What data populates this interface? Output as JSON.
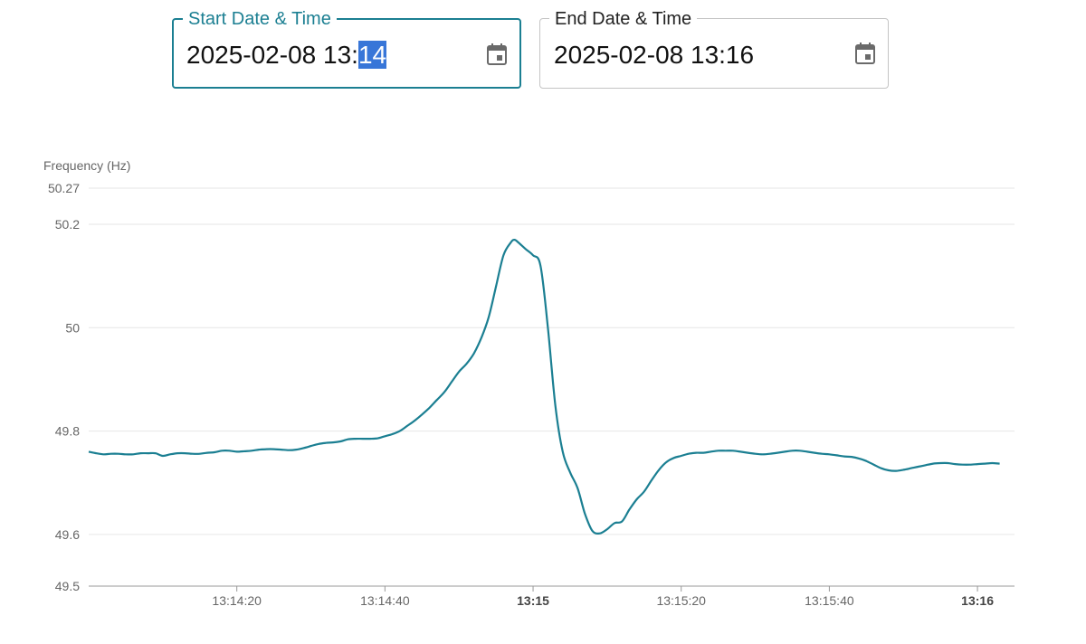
{
  "start_field": {
    "label": "Start Date & Time",
    "value_prefix": "2025-02-08 13:",
    "value_selected": "14",
    "icon": "calendar-icon"
  },
  "end_field": {
    "label": "End Date & Time",
    "value": "2025-02-08 13:16",
    "icon": "calendar-icon"
  },
  "colors": {
    "accent": "#1b7f92",
    "line": "#1b7f92",
    "selection": "#3876d8",
    "grid": "#e6e6e6"
  },
  "chart_data": {
    "type": "line",
    "ylabel": "Frequency (Hz)",
    "ylim": [
      49.5,
      50.27
    ],
    "yticks": [
      "50.27",
      "50.2",
      "50",
      "49.8",
      "49.6",
      "49.5"
    ],
    "xlim": [
      "13:14:00",
      "13:16:05"
    ],
    "xticks": [
      {
        "t": 20,
        "label": "13:14:20",
        "major": false
      },
      {
        "t": 40,
        "label": "13:14:40",
        "major": false
      },
      {
        "t": 60,
        "label": "13:15",
        "major": true
      },
      {
        "t": 80,
        "label": "13:15:20",
        "major": false
      },
      {
        "t": 100,
        "label": "13:15:40",
        "major": false
      },
      {
        "t": 120,
        "label": "13:16",
        "major": true
      }
    ],
    "x_seconds_from_13_14_00": [
      0,
      1,
      2,
      3,
      4,
      5,
      6,
      7,
      8,
      9,
      10,
      11,
      12,
      13,
      14,
      15,
      16,
      17,
      18,
      19,
      20,
      21,
      22,
      23,
      24,
      25,
      26,
      27,
      28,
      29,
      30,
      31,
      32,
      33,
      34,
      35,
      36,
      37,
      38,
      39,
      40,
      41,
      42,
      43,
      44,
      45,
      46,
      47,
      48,
      49,
      50,
      51,
      52,
      53,
      54,
      55,
      56,
      57,
      57.5,
      58,
      59,
      60,
      61,
      62,
      63,
      64,
      65,
      66,
      67,
      68,
      69,
      70,
      71,
      72,
      73,
      74,
      75,
      76,
      77,
      78,
      79,
      80,
      81,
      82,
      83,
      84,
      85,
      86,
      87,
      88,
      89,
      90,
      91,
      92,
      93,
      94,
      95,
      96,
      97,
      98,
      99,
      100,
      101,
      102,
      103,
      104,
      105,
      106,
      107,
      108,
      109,
      110,
      111,
      112,
      113,
      114,
      115,
      116,
      117,
      118,
      119,
      120,
      121,
      122,
      123,
      124,
      125
    ],
    "y_hz": [
      49.76,
      49.757,
      49.755,
      49.756,
      49.756,
      49.755,
      49.755,
      49.757,
      49.757,
      49.757,
      49.752,
      49.755,
      49.757,
      49.757,
      49.756,
      49.756,
      49.758,
      49.759,
      49.762,
      49.762,
      49.76,
      49.761,
      49.762,
      49.764,
      49.765,
      49.765,
      49.764,
      49.763,
      49.764,
      49.767,
      49.771,
      49.775,
      49.777,
      49.778,
      49.78,
      49.784,
      49.785,
      49.785,
      49.785,
      49.786,
      49.79,
      49.794,
      49.8,
      49.81,
      49.82,
      49.832,
      49.845,
      49.86,
      49.875,
      49.895,
      49.915,
      49.93,
      49.95,
      49.98,
      50.02,
      50.08,
      50.14,
      50.165,
      50.17,
      50.165,
      50.152,
      50.14,
      50.12,
      50.0,
      49.85,
      49.76,
      49.72,
      49.69,
      49.64,
      49.607,
      49.602,
      49.61,
      49.622,
      49.625,
      49.648,
      49.668,
      49.683,
      49.705,
      49.725,
      49.74,
      49.748,
      49.752,
      49.756,
      49.758,
      49.758,
      49.76,
      49.762,
      49.762,
      49.762,
      49.76,
      49.758,
      49.756,
      49.755,
      49.756,
      49.758,
      49.76,
      49.762,
      49.762,
      49.76,
      49.758,
      49.756,
      49.755,
      49.753,
      49.751,
      49.75,
      49.747,
      49.742,
      49.735,
      49.728,
      49.724,
      49.723,
      49.725,
      49.728,
      49.731,
      49.734,
      49.737,
      49.738,
      49.738,
      49.736,
      49.735,
      49.735,
      49.736,
      49.737,
      49.738,
      49.737,
      49.736
    ]
  }
}
